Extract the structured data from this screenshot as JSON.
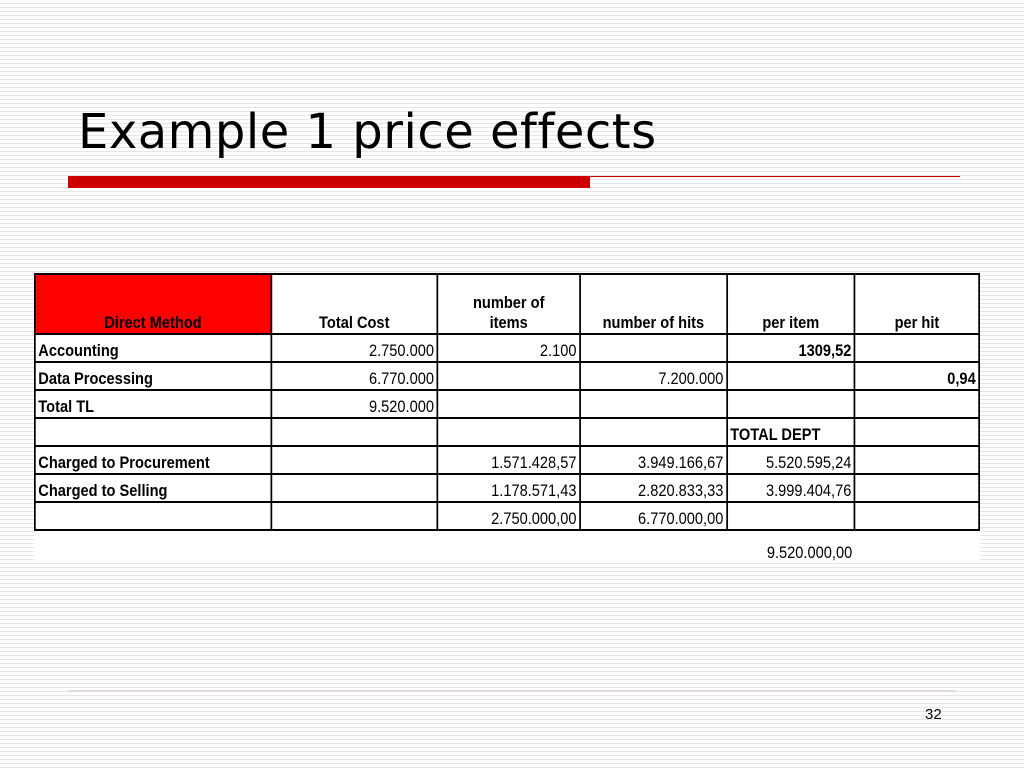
{
  "slide": {
    "title": "Example 1 price effects",
    "page_number": "32",
    "accent_color": "#cc0000"
  },
  "table": {
    "header": {
      "method": "Direct Method",
      "total_cost": "Total Cost",
      "items_line1": "number of",
      "items_line2": "items",
      "hits": "number of hits",
      "per_item": "per item",
      "per_hit": "per hit",
      "method_cell_color": "#ff0000"
    },
    "rows": [
      [
        "Accounting",
        "2.750.000",
        "2.100",
        "",
        "1309,52",
        ""
      ],
      [
        "Data Processing",
        "6.770.000",
        "",
        "7.200.000",
        "",
        "0,94"
      ],
      [
        "Total TL",
        "9.520.000",
        "",
        "",
        "",
        ""
      ],
      [
        "",
        "",
        "",
        "",
        "TOTAL DEPT",
        ""
      ],
      [
        "Charged to Procurement",
        "",
        "1.571.428,57",
        "3.949.166,67",
        "5.520.595,24",
        ""
      ],
      [
        "Charged to Selling",
        "",
        "1.178.571,43",
        "2.820.833,33",
        "3.999.404,76",
        ""
      ],
      [
        "",
        "",
        "2.750.000,00",
        "6.770.000,00",
        "",
        ""
      ]
    ],
    "grand_total": "9.520.000,00"
  }
}
